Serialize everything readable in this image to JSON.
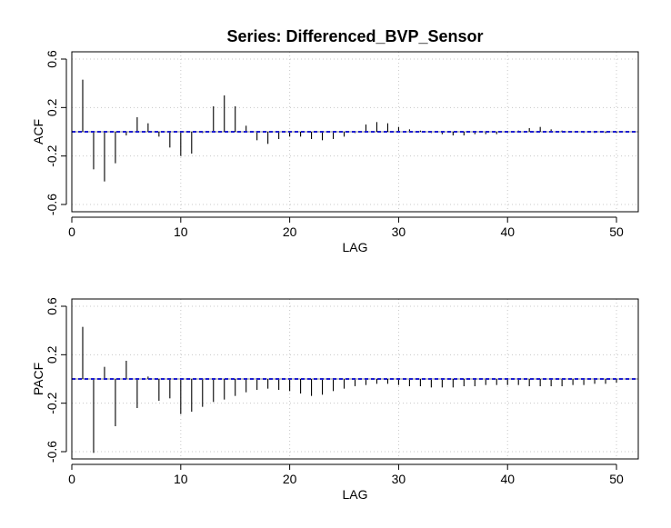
{
  "chart_data": [
    {
      "type": "bar",
      "title": "Series:  Differenced_BVP_Sensor",
      "xlabel": "LAG",
      "ylabel": "ACF",
      "xlim": [
        0,
        52
      ],
      "ylim": [
        -0.66,
        0.66
      ],
      "xticks": [
        0,
        10,
        20,
        30,
        40,
        50
      ],
      "yticks": [
        -0.6,
        -0.2,
        0.2,
        0.6
      ],
      "ytick_labels": [
        "-0.6",
        "-0.2",
        "0.2",
        "0.6"
      ],
      "grid": true,
      "confidence_band": 0.004,
      "colors": {
        "bars": "#000000",
        "band": "#1f1fd0",
        "grid": "#c8c8c8",
        "zero": "#888888"
      },
      "lags": [
        1,
        2,
        3,
        4,
        5,
        6,
        7,
        8,
        9,
        10,
        11,
        12,
        13,
        14,
        15,
        16,
        17,
        18,
        19,
        20,
        21,
        22,
        23,
        24,
        25,
        26,
        27,
        28,
        29,
        30,
        31,
        32,
        33,
        34,
        35,
        36,
        37,
        38,
        39,
        40,
        41,
        42,
        43,
        44,
        45,
        46,
        47,
        48,
        49,
        50
      ],
      "values": [
        0.43,
        -0.31,
        -0.41,
        -0.26,
        -0.03,
        0.12,
        0.07,
        -0.04,
        -0.13,
        -0.2,
        -0.18,
        -0.01,
        0.21,
        0.3,
        0.21,
        0.05,
        -0.07,
        -0.1,
        -0.06,
        -0.04,
        -0.04,
        -0.06,
        -0.07,
        -0.06,
        -0.04,
        -0.01,
        0.06,
        0.08,
        0.07,
        0.04,
        0.02,
        0.01,
        -0.01,
        -0.02,
        -0.03,
        -0.03,
        -0.02,
        -0.02,
        -0.02,
        -0.01,
        0.01,
        0.03,
        0.04,
        0.02,
        0.01,
        0.0,
        -0.01,
        -0.01,
        -0.01,
        -0.01
      ]
    },
    {
      "type": "bar",
      "title": "",
      "xlabel": "LAG",
      "ylabel": "PACF",
      "xlim": [
        0,
        52
      ],
      "ylim": [
        -0.66,
        0.66
      ],
      "xticks": [
        0,
        10,
        20,
        30,
        40,
        50
      ],
      "yticks": [
        -0.6,
        -0.2,
        0.2,
        0.6
      ],
      "ytick_labels": [
        "-0.6",
        "-0.2",
        "0.2",
        "0.6"
      ],
      "grid": true,
      "confidence_band": 0.004,
      "colors": {
        "bars": "#000000",
        "band": "#1f1fd0",
        "grid": "#c8c8c8",
        "zero": "#888888"
      },
      "lags": [
        1,
        2,
        3,
        4,
        5,
        6,
        7,
        8,
        9,
        10,
        11,
        12,
        13,
        14,
        15,
        16,
        17,
        18,
        19,
        20,
        21,
        22,
        23,
        24,
        25,
        26,
        27,
        28,
        29,
        30,
        31,
        32,
        33,
        34,
        35,
        36,
        37,
        38,
        39,
        40,
        41,
        42,
        43,
        44,
        45,
        46,
        47,
        48,
        49,
        50
      ],
      "values": [
        0.43,
        -0.61,
        0.1,
        -0.39,
        0.15,
        -0.24,
        0.02,
        -0.18,
        -0.16,
        -0.29,
        -0.27,
        -0.23,
        -0.19,
        -0.17,
        -0.14,
        -0.11,
        -0.09,
        -0.08,
        -0.09,
        -0.1,
        -0.12,
        -0.14,
        -0.13,
        -0.1,
        -0.08,
        -0.06,
        -0.05,
        -0.04,
        -0.04,
        -0.05,
        -0.06,
        -0.06,
        -0.07,
        -0.07,
        -0.07,
        -0.06,
        -0.06,
        -0.05,
        -0.05,
        -0.05,
        -0.05,
        -0.06,
        -0.06,
        -0.06,
        -0.06,
        -0.05,
        -0.05,
        -0.04,
        -0.04,
        -0.03
      ]
    }
  ]
}
